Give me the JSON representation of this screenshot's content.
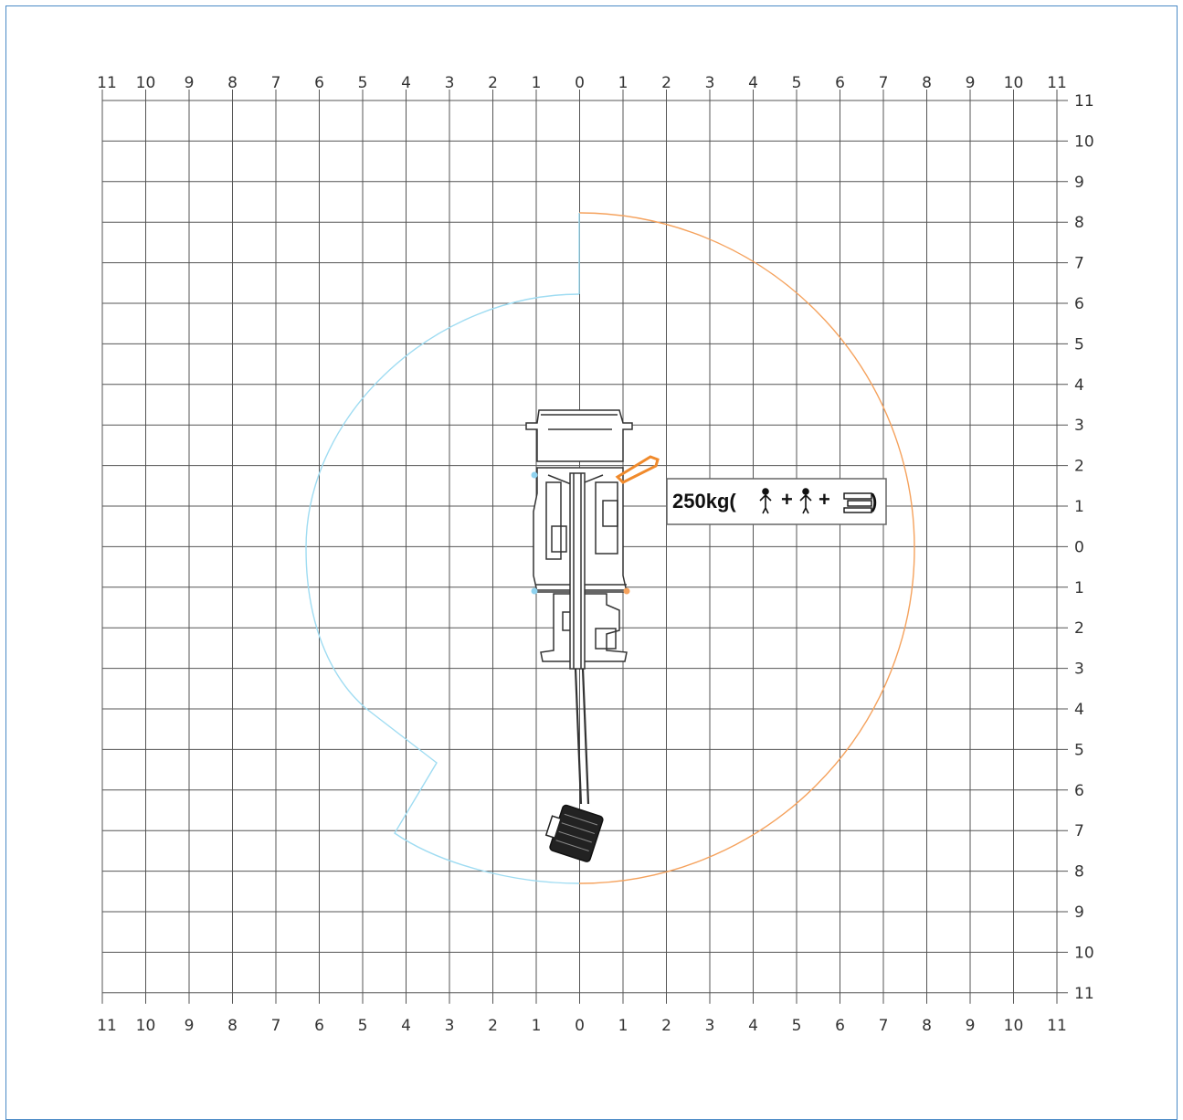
{
  "diagram": {
    "top_labels": [
      "11",
      "10",
      "9",
      "8",
      "7",
      "6",
      "5",
      "4",
      "3",
      "2",
      "1",
      "0",
      "1",
      "2",
      "3",
      "4",
      "5",
      "6",
      "7",
      "8",
      "9",
      "10",
      "11"
    ],
    "bottom_labels": [
      "11",
      "10",
      "9",
      "8",
      "7",
      "6",
      "5",
      "4",
      "3",
      "2",
      "1",
      "0",
      "1",
      "2",
      "3",
      "4",
      "5",
      "6",
      "7",
      "8",
      "9",
      "10",
      "11"
    ],
    "right_labels": [
      "11",
      "10",
      "9",
      "8",
      "7",
      "6",
      "5",
      "4",
      "3",
      "2",
      "1",
      "0",
      "1",
      "2",
      "3",
      "4",
      "5",
      "6",
      "7",
      "8",
      "9",
      "10",
      "11"
    ],
    "capacity_label": "250kg(",
    "capacity_plus_1": "+",
    "capacity_plus_2": "+",
    "capacity_close": ")",
    "colors": {
      "grid": "#555555",
      "outreach_right": "#f5a25d",
      "outreach_left": "#9fdcf2",
      "machine": "#333333",
      "jib": "#f08a2c",
      "frame": "#4a8ac6"
    },
    "icons": [
      "person-icon",
      "person-icon",
      "materials-icon"
    ]
  }
}
